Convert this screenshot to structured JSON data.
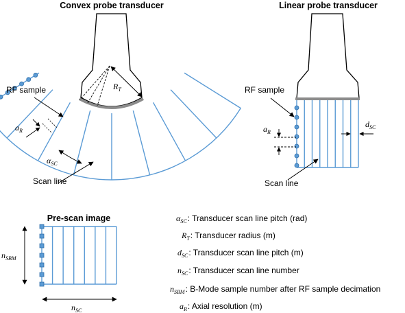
{
  "convex": {
    "title": "Convex probe transducer",
    "rf_label": "RF sample",
    "scan_label": "Scan line",
    "radius_label": "R",
    "radius_sub": "T",
    "pitch_label": "α",
    "pitch_sub": "SC",
    "axial_label": "a",
    "axial_sub": "R"
  },
  "linear": {
    "title": "Linear probe transducer",
    "rf_label": "RF sample",
    "scan_label": "Scan line",
    "pitch_label": "d",
    "pitch_sub": "SC",
    "axial_label": "a",
    "axial_sub": "R"
  },
  "prescan": {
    "title": "Pre-scan image",
    "height_label": "n",
    "height_sub": "SBM",
    "width_label": "n",
    "width_sub": "SC"
  },
  "legend": [
    {
      "sym": "α",
      "sub": "SC",
      "text": ": Transducer scan line pitch (rad)"
    },
    {
      "sym": "R",
      "sub": "T",
      "text": ": Transducer radius (m)"
    },
    {
      "sym": "d",
      "sub": "SC",
      "text": ": Transducer scan line pitch (m)"
    },
    {
      "sym": "n",
      "sub": "SC",
      "text": ": Transducer scan line number"
    },
    {
      "sym": "n",
      "sub": "SBM",
      "text": ": B-Mode sample number after RF sample decimation"
    },
    {
      "sym": "a",
      "sub": "R",
      "text": ": Axial resolution (m)"
    }
  ],
  "colors": {
    "scan_line": "#5b9bd5",
    "transducer_face": "#8c8c8c"
  }
}
